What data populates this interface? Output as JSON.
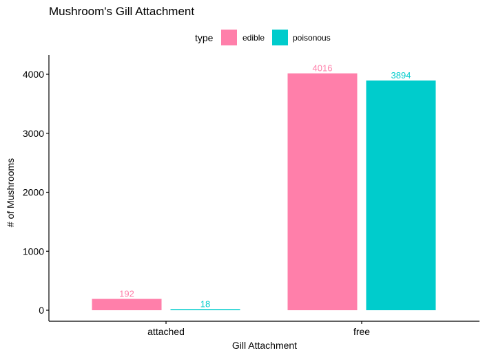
{
  "chart_data": {
    "type": "bar",
    "title": "Mushroom's Gill Attachment",
    "xlabel": "Gill Attachment",
    "ylabel": "# of Mushrooms",
    "categories": [
      "attached",
      "free"
    ],
    "series": [
      {
        "name": "edible",
        "values": [
          192,
          4016
        ],
        "color": "#FF7FAA"
      },
      {
        "name": "poisonous",
        "values": [
          18,
          3894
        ],
        "color": "#00CCCC"
      }
    ],
    "ylim": [
      0,
      4200
    ],
    "yticks": [
      0,
      1000,
      2000,
      3000,
      4000
    ],
    "legend": {
      "title": "type",
      "position": "top"
    },
    "grid": false
  }
}
